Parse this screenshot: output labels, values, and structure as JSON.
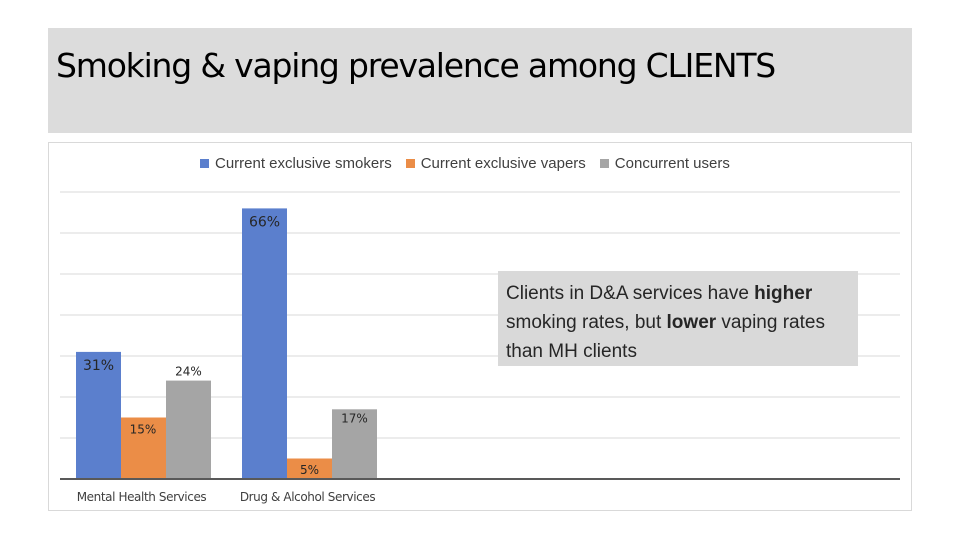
{
  "slide": {
    "title": "Smoking & vaping prevalence among CLIENTS"
  },
  "callout": {
    "part1": "Clients in D&A services have ",
    "bold1": "higher",
    "part2": " smoking rates, but ",
    "bold2": "lower",
    "part3": " vaping rates than MH clients"
  },
  "colors": {
    "smokers": "#5b7fcd",
    "vapers": "#eb8d47",
    "concurrent": "#a5a5a5",
    "gridline": "#d9d9d9",
    "axis": "#595959"
  },
  "chart_data": {
    "type": "bar",
    "title": "",
    "xlabel": "",
    "ylabel": "",
    "categories": [
      "Mental Health Services",
      "Drug & Alcohol Services"
    ],
    "series": [
      {
        "name": "Current exclusive smokers",
        "values": [
          31,
          66
        ],
        "labels": [
          "31%",
          "66%"
        ]
      },
      {
        "name": "Current exclusive vapers",
        "values": [
          15,
          5
        ],
        "labels": [
          "15%",
          "5%"
        ]
      },
      {
        "name": "Concurrent users",
        "values": [
          24,
          17
        ],
        "labels": [
          "24%",
          "17%"
        ]
      }
    ],
    "ylim": [
      0,
      70
    ],
    "grid": true,
    "legend": "top"
  }
}
